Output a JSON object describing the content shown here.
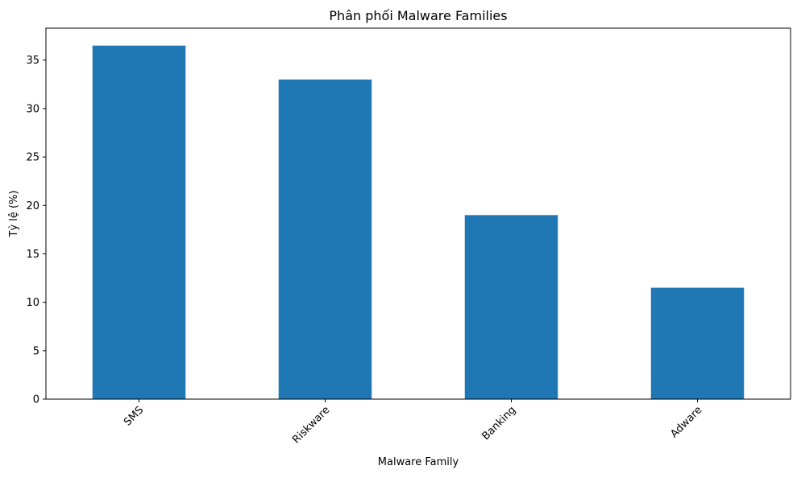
{
  "chart_data": {
    "type": "bar",
    "title": "Phân phối Malware Families",
    "xlabel": "Malware Family",
    "ylabel": "Tỷ lệ (%)",
    "categories": [
      "SMS",
      "Riskware",
      "Banking",
      "Adware"
    ],
    "values": [
      36.5,
      33.0,
      19.0,
      11.5
    ],
    "ylim": [
      0,
      38.3
    ],
    "yticks": [
      0,
      5,
      10,
      15,
      20,
      25,
      30,
      35
    ],
    "grid": false,
    "legend": "none",
    "bar_color": "#1f77b4",
    "xtick_rotation": "45 degrees"
  }
}
